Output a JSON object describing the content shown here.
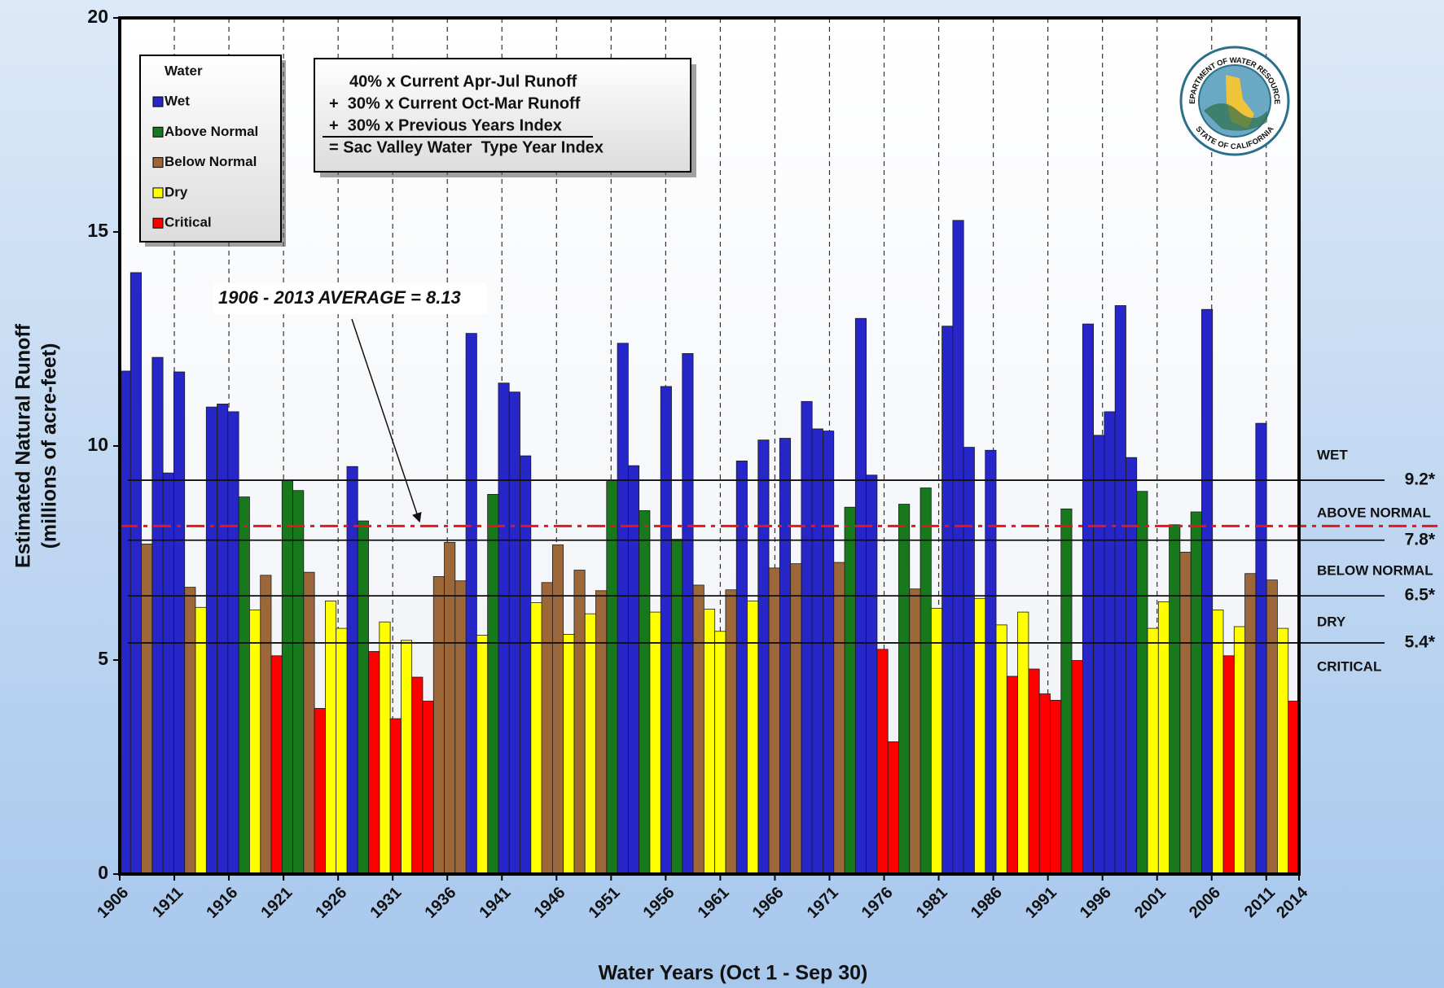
{
  "chart_data": {
    "type": "bar",
    "x_label": "Water Years (Oct 1 - Sep 30)",
    "y_label": [
      "Estimated Natural Runoff",
      "(millions of acre-feet)"
    ],
    "legend_title": "Water",
    "legend": "top-left",
    "grid": true,
    "x": [
      1906,
      1907,
      1908,
      1909,
      1910,
      1911,
      1912,
      1913,
      1914,
      1915,
      1916,
      1917,
      1918,
      1919,
      1920,
      1921,
      1922,
      1923,
      1924,
      1925,
      1926,
      1927,
      1928,
      1929,
      1930,
      1931,
      1932,
      1933,
      1934,
      1935,
      1936,
      1937,
      1938,
      1939,
      1940,
      1941,
      1942,
      1943,
      1944,
      1945,
      1946,
      1947,
      1948,
      1949,
      1950,
      1951,
      1952,
      1953,
      1954,
      1955,
      1956,
      1957,
      1958,
      1959,
      1960,
      1961,
      1962,
      1963,
      1964,
      1965,
      1966,
      1967,
      1968,
      1969,
      1970,
      1971,
      1972,
      1973,
      1974,
      1975,
      1976,
      1977,
      1978,
      1979,
      1980,
      1981,
      1982,
      1983,
      1984,
      1985,
      1986,
      1987,
      1988,
      1989,
      1990,
      1991,
      1992,
      1993,
      1994,
      1995,
      1996,
      1997,
      1998,
      1999,
      2000,
      2001,
      2002,
      2003,
      2004,
      2005,
      2006,
      2007,
      2008,
      2009,
      2010,
      2011,
      2012,
      2013,
      2014
    ],
    "xlim": [
      1906,
      2014
    ],
    "xticks": [
      1906,
      1911,
      1916,
      1921,
      1926,
      1931,
      1936,
      1941,
      1946,
      1951,
      1956,
      1961,
      1966,
      1971,
      1976,
      1981,
      1986,
      1991,
      1996,
      2001,
      2006,
      2011,
      2014
    ],
    "ylim": [
      0,
      20
    ],
    "yticks": [
      0,
      5,
      10,
      15,
      20
    ],
    "series": [
      {
        "name": "Wet",
        "color": "#2626c9",
        "values": [
          11.75,
          14.05,
          null,
          12.07,
          9.37,
          11.73,
          null,
          null,
          10.91,
          10.98,
          10.8,
          null,
          null,
          null,
          null,
          null,
          null,
          null,
          null,
          null,
          null,
          9.52,
          null,
          null,
          null,
          null,
          null,
          null,
          null,
          null,
          null,
          null,
          12.63,
          null,
          null,
          11.47,
          11.26,
          9.77,
          null,
          null,
          null,
          null,
          null,
          null,
          null,
          null,
          12.4,
          9.54,
          null,
          null,
          11.39,
          null,
          12.16,
          null,
          null,
          null,
          null,
          9.65,
          null,
          10.14,
          null,
          10.18,
          null,
          11.04,
          10.4,
          10.35,
          null,
          null,
          12.98,
          9.32,
          null,
          null,
          null,
          null,
          null,
          null,
          12.8,
          15.27,
          9.97,
          null,
          9.9,
          null,
          null,
          null,
          null,
          null,
          null,
          null,
          null,
          12.85,
          10.25,
          10.8,
          13.28,
          9.73,
          null,
          null,
          null,
          null,
          null,
          null,
          13.19,
          null,
          null,
          null,
          null,
          10.53,
          null,
          null,
          null
        ]
      },
      {
        "name": "Above Normal",
        "color": "#17781c",
        "values": [
          null,
          null,
          null,
          null,
          null,
          null,
          null,
          null,
          null,
          null,
          null,
          8.81,
          null,
          null,
          null,
          9.19,
          8.96,
          null,
          null,
          null,
          null,
          null,
          8.25,
          null,
          null,
          null,
          null,
          null,
          null,
          null,
          null,
          null,
          null,
          null,
          8.87,
          null,
          null,
          null,
          null,
          null,
          null,
          null,
          null,
          null,
          null,
          9.17,
          null,
          null,
          8.49,
          null,
          null,
          7.82,
          null,
          null,
          null,
          null,
          null,
          null,
          null,
          null,
          null,
          null,
          null,
          null,
          null,
          null,
          null,
          8.57,
          null,
          null,
          null,
          null,
          8.64,
          null,
          9.02,
          null,
          null,
          null,
          null,
          null,
          null,
          null,
          null,
          null,
          null,
          null,
          null,
          8.53,
          null,
          null,
          null,
          null,
          null,
          null,
          8.94,
          null,
          null,
          8.16,
          null,
          8.46,
          null,
          null,
          null,
          null,
          null,
          null,
          null,
          null,
          null
        ]
      },
      {
        "name": "Below Normal",
        "color": "#9c683a",
        "values": [
          null,
          null,
          7.71,
          null,
          null,
          null,
          6.7,
          null,
          null,
          null,
          null,
          null,
          null,
          6.98,
          null,
          null,
          null,
          7.05,
          null,
          null,
          null,
          null,
          null,
          null,
          null,
          null,
          null,
          null,
          null,
          6.95,
          7.75,
          6.85,
          null,
          null,
          null,
          null,
          null,
          null,
          null,
          6.81,
          7.69,
          null,
          7.1,
          null,
          6.62,
          null,
          null,
          null,
          null,
          null,
          null,
          null,
          null,
          6.75,
          null,
          null,
          6.64,
          null,
          null,
          null,
          7.15,
          null,
          7.25,
          null,
          null,
          null,
          7.28,
          null,
          null,
          null,
          null,
          null,
          null,
          6.66,
          null,
          null,
          null,
          null,
          null,
          null,
          null,
          null,
          null,
          null,
          null,
          null,
          null,
          null,
          null,
          null,
          null,
          null,
          null,
          null,
          null,
          null,
          null,
          null,
          7.52,
          null,
          null,
          null,
          null,
          null,
          7.02,
          null,
          6.87,
          null,
          null
        ]
      },
      {
        "name": "Dry",
        "color": "#ffff00",
        "values": [
          null,
          null,
          null,
          null,
          null,
          null,
          null,
          6.23,
          null,
          null,
          null,
          null,
          6.17,
          null,
          null,
          null,
          null,
          null,
          null,
          6.38,
          5.74,
          null,
          null,
          null,
          5.89,
          null,
          5.46,
          null,
          null,
          null,
          null,
          null,
          null,
          5.58,
          null,
          null,
          null,
          null,
          6.34,
          null,
          null,
          5.6,
          null,
          6.08,
          null,
          null,
          null,
          null,
          null,
          6.12,
          null,
          null,
          null,
          null,
          6.19,
          5.67,
          null,
          null,
          6.38,
          null,
          null,
          null,
          null,
          null,
          null,
          null,
          null,
          null,
          null,
          null,
          null,
          null,
          null,
          null,
          null,
          6.21,
          null,
          null,
          null,
          6.44,
          null,
          5.82,
          null,
          6.12,
          null,
          null,
          null,
          null,
          null,
          null,
          null,
          null,
          null,
          null,
          null,
          5.74,
          6.36,
          null,
          null,
          null,
          null,
          6.17,
          null,
          5.78,
          null,
          null,
          null,
          5.74,
          null
        ]
      },
      {
        "name": "Critical",
        "color": "#ff0000",
        "values": [
          null,
          null,
          null,
          null,
          null,
          null,
          null,
          null,
          null,
          null,
          null,
          null,
          null,
          null,
          5.1,
          null,
          null,
          null,
          3.87,
          null,
          null,
          null,
          null,
          5.2,
          null,
          3.63,
          null,
          4.6,
          4.04,
          null,
          null,
          null,
          null,
          null,
          null,
          null,
          null,
          null,
          null,
          null,
          null,
          null,
          null,
          null,
          null,
          null,
          null,
          null,
          null,
          null,
          null,
          null,
          null,
          null,
          null,
          null,
          null,
          null,
          null,
          null,
          null,
          null,
          null,
          null,
          null,
          null,
          null,
          null,
          null,
          null,
          5.25,
          3.09,
          null,
          null,
          null,
          null,
          null,
          null,
          null,
          null,
          null,
          null,
          4.62,
          null,
          4.79,
          4.21,
          4.06,
          null,
          4.99,
          null,
          null,
          null,
          null,
          null,
          null,
          null,
          null,
          null,
          null,
          null,
          null,
          null,
          5.1,
          null,
          null,
          null,
          null,
          null,
          4.04
        ]
      }
    ],
    "thresholds": [
      {
        "value": 9.2,
        "label": "9.2*"
      },
      {
        "value": 7.8,
        "label": "7.8*"
      },
      {
        "value": 6.5,
        "label": "6.5*"
      },
      {
        "value": 5.4,
        "label": "5.4*"
      }
    ],
    "zones": [
      "WET",
      "ABOVE NORMAL",
      "BELOW NORMAL",
      "DRY",
      "CRITICAL"
    ],
    "average": {
      "value": 8.13,
      "label": "1906 - 2013 AVERAGE = 8.13",
      "color": "#e8141e"
    },
    "formula": [
      "40% x Current Apr-Jul Runoff",
      "+  30% x Current Oct-Mar Runoff",
      "+  30% x Previous Years Index",
      "= Sac Valley Water  Type Year Index"
    ],
    "logo": [
      "DEPARTMENT OF WATER RESOURCES",
      "STATE OF CALIFORNIA"
    ]
  }
}
